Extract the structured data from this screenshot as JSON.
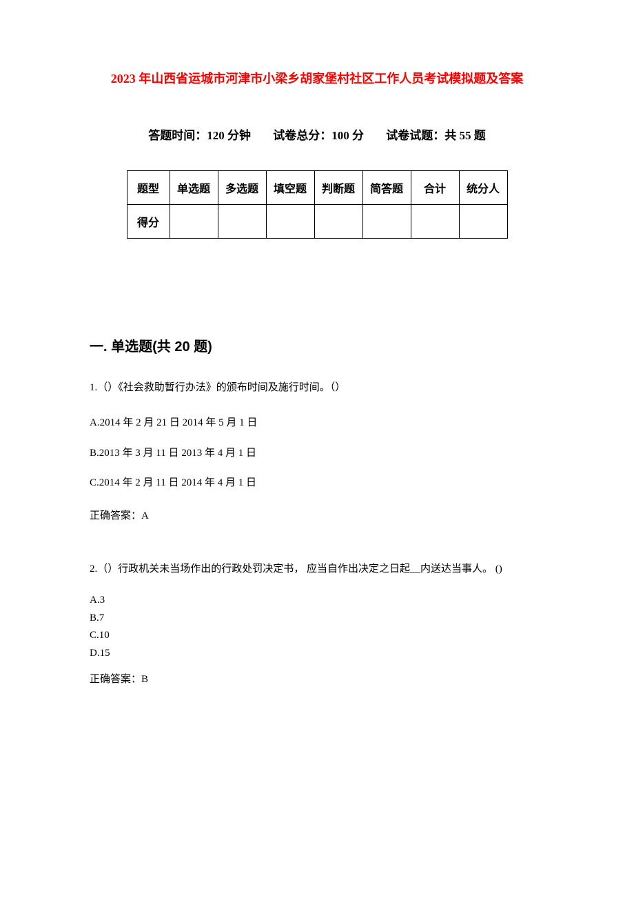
{
  "title": "2023 年山西省运城市河津市小梁乡胡家堡村社区工作人员考试模拟题及答案",
  "meta": {
    "time_label": "答题时间：120 分钟",
    "total_label": "试卷总分：100 分",
    "count_label": "试卷试题：共 55 题"
  },
  "table": {
    "headers": [
      "题型",
      "单选题",
      "多选题",
      "填空题",
      "判断题",
      "简答题",
      "合计",
      "统分人"
    ],
    "row2_label": "得分",
    "border_color": "#000000",
    "font_weight": "bold"
  },
  "section1": {
    "heading": "一. 单选题(共 20 题)",
    "questions": [
      {
        "number": "1.",
        "stem": "（）《社会救助暂行办法》的颁布时间及施行时间。（）",
        "options": [
          "A.2014 年 2 月 21 日 2014 年 5 月 1 日",
          "B.2013 年 3 月 11 日 2013 年 4 月 1 日",
          "C.2014 年 2 月 11 日 2014 年 4 月 1 日"
        ],
        "answer": "正确答案：A"
      },
      {
        "number": "2.",
        "stem": "（）行政机关未当场作出的行政处罚决定书，  应当自作出决定之日起__内送达当事人。  ()",
        "options": [
          "A.3",
          "B.7",
          "C.10",
          "D.15"
        ],
        "answer": "正确答案：B"
      }
    ]
  },
  "colors": {
    "title": "#ff0000",
    "text": "#000000",
    "background": "#ffffff"
  },
  "fonts": {
    "title_size": 18,
    "info_size": 17,
    "section_size": 20,
    "body_size": 15
  }
}
